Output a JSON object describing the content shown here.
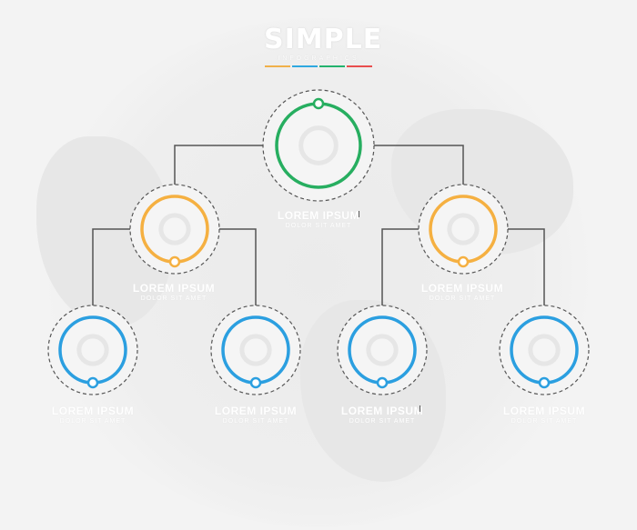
{
  "logo": {
    "title": "SIMPLE",
    "subtitle": "INFOGRAPHICS",
    "bar_colors": [
      "#f0b04a",
      "#2ea8e0",
      "#23b26d",
      "#e94e4e"
    ]
  },
  "colors": {
    "green": "#27ae60",
    "orange": "#f5b041",
    "blue": "#2b9fe0",
    "connector": "#555555",
    "dash": "#555555"
  },
  "nodes": [
    {
      "id": "root",
      "level": 0,
      "color": "green",
      "icon": "flag-icon",
      "title": "LOREM IPSUM",
      "subtitle": "DOLOR SIT AMET"
    },
    {
      "id": "mid-left",
      "level": 1,
      "color": "orange",
      "icon": "gear-icon",
      "title": "LOREM IPSUM",
      "subtitle": "DOLOR SIT AMET"
    },
    {
      "id": "mid-right",
      "level": 1,
      "color": "orange",
      "icon": "cloud-icon",
      "title": "LOREM IPSUM",
      "subtitle": "DOLOR SIT AMET"
    },
    {
      "id": "leaf-1",
      "level": 2,
      "color": "blue",
      "icon": "wrench-icon",
      "title": "LOREM IPSUM",
      "subtitle": "DOLOR SIT AMET"
    },
    {
      "id": "leaf-2",
      "level": 2,
      "color": "blue",
      "icon": "search-icon",
      "title": "LOREM IPSUM",
      "subtitle": "DOLOR SIT AMET"
    },
    {
      "id": "leaf-3",
      "level": 2,
      "color": "blue",
      "icon": "target-icon",
      "title": "LOREM IPSUM",
      "subtitle": "DOLOR SIT AMET"
    },
    {
      "id": "leaf-4",
      "level": 2,
      "color": "blue",
      "icon": "clock-icon",
      "title": "LOREM IPSUM",
      "subtitle": "DOLOR SIT AMET"
    }
  ]
}
